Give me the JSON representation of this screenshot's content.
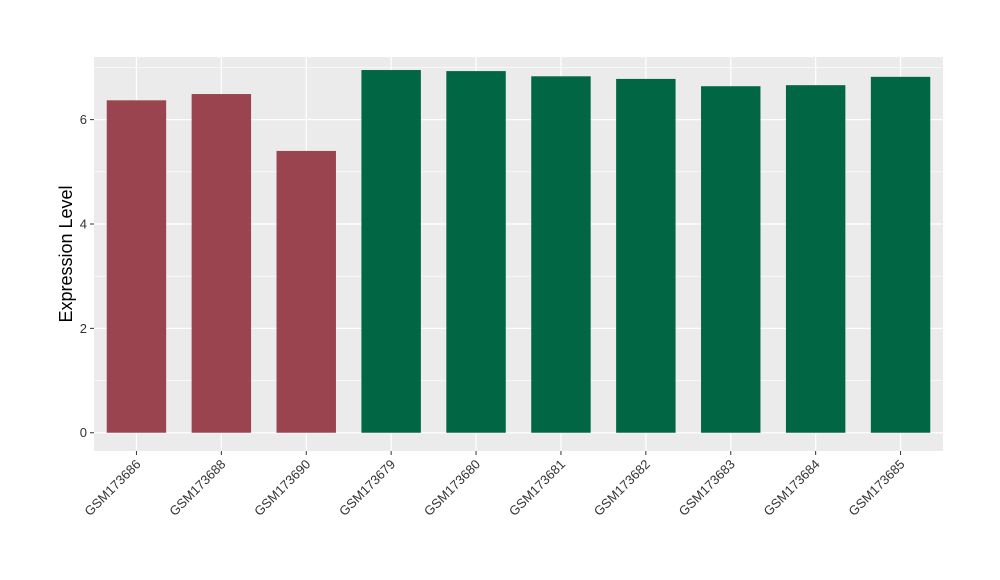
{
  "chart_data": {
    "type": "bar",
    "title": "",
    "xlabel": "",
    "ylabel": "Expression Level",
    "ylim": [
      -0.35,
      7.2
    ],
    "yticks": [
      0,
      2,
      4,
      6
    ],
    "grid": true,
    "legend": "none",
    "categories": [
      "GSM173686",
      "GSM173688",
      "GSM173690",
      "GSM173679",
      "GSM173680",
      "GSM173681",
      "GSM173682",
      "GSM173683",
      "GSM173684",
      "GSM173685"
    ],
    "values": [
      6.37,
      6.49,
      5.4,
      6.95,
      6.93,
      6.83,
      6.78,
      6.64,
      6.66,
      6.82
    ],
    "groups": [
      0,
      0,
      0,
      1,
      1,
      1,
      1,
      1,
      1,
      1
    ],
    "colors": {
      "group_0": "#99444F",
      "group_1": "#006644",
      "panel_background": "#EBEBEB",
      "grid_major": "#FFFFFF",
      "tick_text": "#333333"
    }
  }
}
